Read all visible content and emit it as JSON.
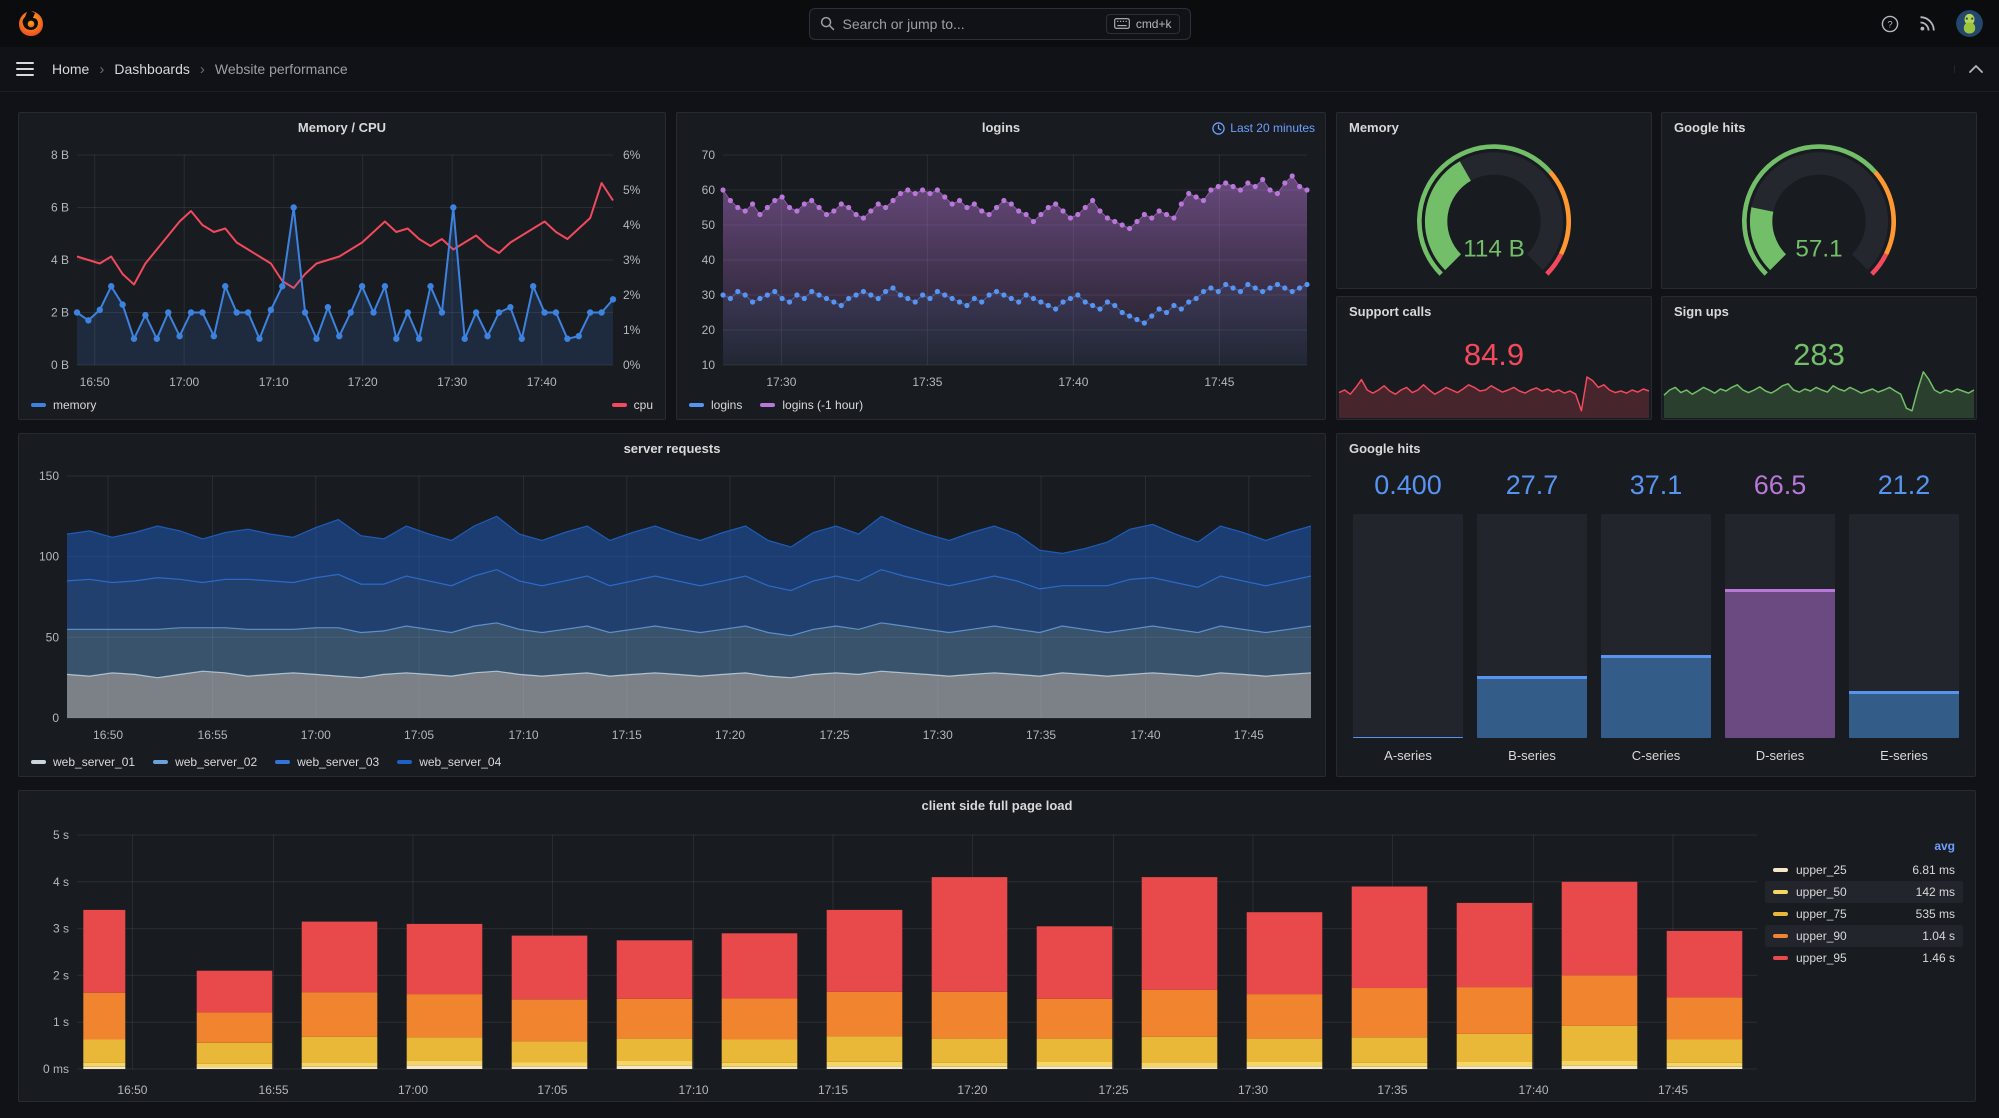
{
  "topnav": {
    "search_placeholder": "Search or jump to...",
    "shortcut_label": "cmd+k"
  },
  "breadcrumb": {
    "home": "Home",
    "section": "Dashboards",
    "current": "Website performance"
  },
  "colors": {
    "green": "#73BF69",
    "red": "#F2495C",
    "orange": "#FF9830",
    "blue": "#5794F2",
    "purple": "#B877D9",
    "link_blue": "#6E9FFF"
  },
  "chart_data": [
    {
      "panel": "memory-cpu",
      "type": "line",
      "title": "Memory / CPU",
      "x_ticks": [
        "16:50",
        "17:00",
        "17:10",
        "17:20",
        "17:30",
        "17:40"
      ],
      "x_tick_pos": [
        0.033,
        0.2,
        0.367,
        0.533,
        0.7,
        0.867
      ],
      "y_left": {
        "ticks": [
          "0 B",
          "2 B",
          "4 B",
          "6 B",
          "8 B"
        ],
        "min": 0,
        "max": 8
      },
      "y_right": {
        "ticks": [
          "0%",
          "1%",
          "2%",
          "3%",
          "4%",
          "5%",
          "6%"
        ],
        "min": 0,
        "max": 6
      },
      "series": [
        {
          "name": "memory",
          "color": "#3D82DE",
          "axis": "left",
          "points": true,
          "point_r": 3.2,
          "width": 2,
          "fill": "rgba(61,130,222,0.16)",
          "values": [
            2,
            1.7,
            2.1,
            3,
            2.3,
            1,
            1.9,
            1,
            2,
            1.1,
            2,
            2,
            1.1,
            3,
            2,
            2,
            1,
            2.1,
            3,
            6,
            2,
            1,
            2.2,
            1.1,
            2,
            3,
            2,
            3,
            1,
            2,
            1,
            3,
            2,
            6,
            1,
            2,
            1.1,
            2,
            2.2,
            1,
            3,
            2,
            2,
            1,
            1.1,
            2,
            2,
            2.5
          ]
        },
        {
          "name": "cpu",
          "color": "#F2495C",
          "axis": "right",
          "width": 2,
          "values": [
            3.1,
            3.0,
            2.9,
            3.1,
            2.6,
            2.3,
            2.9,
            3.3,
            3.7,
            4.1,
            4.4,
            4.0,
            3.8,
            3.9,
            3.5,
            3.3,
            3.1,
            2.9,
            2.4,
            2.2,
            2.6,
            2.9,
            3.0,
            3.1,
            3.3,
            3.5,
            3.8,
            4.1,
            3.8,
            3.9,
            3.6,
            3.4,
            3.6,
            3.3,
            3.5,
            3.7,
            3.4,
            3.2,
            3.5,
            3.7,
            3.9,
            4.1,
            3.8,
            3.6,
            3.9,
            4.2,
            5.2,
            4.7
          ]
        }
      ]
    },
    {
      "panel": "logins",
      "type": "line",
      "title": "logins",
      "time_range_label": "Last 20 minutes",
      "x_ticks": [
        "17:30",
        "17:35",
        "17:40",
        "17:45"
      ],
      "x_tick_pos": [
        0.1,
        0.35,
        0.6,
        0.85
      ],
      "y_left": {
        "ticks": [
          "10",
          "20",
          "30",
          "40",
          "50",
          "60",
          "70"
        ],
        "min": 10,
        "max": 70
      },
      "series": [
        {
          "name": "logins",
          "color": "#5794F2",
          "points": true,
          "point_r": 2.6,
          "width": 1,
          "line_opacity": 0.5,
          "fill": "rgba(87,148,242,0.08)",
          "values": [
            30,
            29,
            31,
            30,
            28,
            29,
            30,
            31,
            29,
            28,
            30,
            29,
            31,
            30,
            29,
            28,
            27,
            29,
            30,
            31,
            30,
            29,
            31,
            32,
            30,
            29,
            28,
            30,
            29,
            31,
            30,
            29,
            28,
            27,
            29,
            28,
            30,
            31,
            30,
            29,
            28,
            30,
            29,
            28,
            27,
            26,
            28,
            29,
            30,
            28,
            27,
            26,
            28,
            27,
            25,
            24,
            23,
            22,
            24,
            26,
            25,
            27,
            26,
            28,
            29,
            31,
            32,
            31,
            33,
            32,
            31,
            33,
            32,
            31,
            32,
            33,
            32,
            31,
            32,
            33
          ]
        },
        {
          "name": "logins (-1 hour)",
          "color": "#B877D9",
          "points": true,
          "point_r": 2.6,
          "width": 1,
          "line_opacity": 0.6,
          "fill": "gradient",
          "values": [
            60,
            57,
            55,
            54,
            56,
            53,
            55,
            57,
            58,
            55,
            54,
            56,
            57,
            55,
            53,
            54,
            56,
            55,
            53,
            52,
            54,
            56,
            55,
            57,
            59,
            60,
            59,
            60,
            59,
            60,
            58,
            56,
            57,
            55,
            56,
            54,
            53,
            55,
            57,
            56,
            54,
            53,
            51,
            53,
            55,
            56,
            54,
            52,
            53,
            55,
            57,
            54,
            52,
            51,
            50,
            49,
            51,
            53,
            52,
            54,
            53,
            52,
            56,
            59,
            58,
            57,
            60,
            61,
            62,
            61,
            60,
            62,
            61,
            63,
            60,
            59,
            62,
            64,
            61,
            60
          ]
        }
      ]
    },
    {
      "panel": "memory-gauge",
      "type": "gauge",
      "title": "Memory",
      "value": "114 B",
      "fill_frac": 0.39,
      "value_color": "#73BF69",
      "thresholds": [
        {
          "to": 0.68,
          "color": "#73BF69"
        },
        {
          "to": 0.93,
          "color": "#FF9830"
        },
        {
          "to": 1,
          "color": "#F2495C"
        }
      ]
    },
    {
      "panel": "google-gauge",
      "type": "gauge",
      "title": "Google hits",
      "value": "57.1",
      "fill_frac": 0.21,
      "value_color": "#73BF69",
      "thresholds": [
        {
          "to": 0.68,
          "color": "#73BF69"
        },
        {
          "to": 0.93,
          "color": "#FF9830"
        },
        {
          "to": 1,
          "color": "#F2495C"
        }
      ]
    },
    {
      "panel": "support-calls",
      "type": "sparkline",
      "title": "Support calls",
      "value": "84.9",
      "color": "#F2495C",
      "values": [
        0.45,
        0.5,
        0.42,
        0.55,
        0.7,
        0.5,
        0.44,
        0.5,
        0.58,
        0.48,
        0.42,
        0.5,
        0.55,
        0.45,
        0.5,
        0.6,
        0.5,
        0.42,
        0.48,
        0.55,
        0.5,
        0.45,
        0.52,
        0.6,
        0.55,
        0.48,
        0.5,
        0.58,
        0.52,
        0.46,
        0.5,
        0.55,
        0.48,
        0.44,
        0.5,
        0.54,
        0.48,
        0.52,
        0.46,
        0.5,
        0.44,
        0.48,
        0.42,
        0.1,
        0.75,
        0.68,
        0.55,
        0.6,
        0.5,
        0.45,
        0.48,
        0.44,
        0.5,
        0.46,
        0.52,
        0.48
      ]
    },
    {
      "panel": "sign-ups",
      "type": "sparkline",
      "title": "Sign ups",
      "value": "283",
      "color": "#73BF69",
      "values": [
        0.4,
        0.5,
        0.55,
        0.45,
        0.5,
        0.42,
        0.48,
        0.55,
        0.5,
        0.44,
        0.52,
        0.48,
        0.55,
        0.6,
        0.5,
        0.45,
        0.5,
        0.56,
        0.48,
        0.44,
        0.5,
        0.58,
        0.62,
        0.5,
        0.46,
        0.52,
        0.48,
        0.55,
        0.5,
        0.46,
        0.58,
        0.52,
        0.48,
        0.55,
        0.5,
        0.44,
        0.48,
        0.52,
        0.46,
        0.5,
        0.55,
        0.48,
        0.42,
        0.15,
        0.1,
        0.5,
        0.85,
        0.7,
        0.5,
        0.44,
        0.5,
        0.46,
        0.52,
        0.48,
        0.44,
        0.5
      ]
    },
    {
      "panel": "server-requests",
      "type": "area",
      "stacked": true,
      "title": "server requests",
      "x_ticks": [
        "16:50",
        "16:55",
        "17:00",
        "17:05",
        "17:10",
        "17:15",
        "17:20",
        "17:25",
        "17:30",
        "17:35",
        "17:40",
        "17:45"
      ],
      "x_tick_pos": [
        0.033,
        0.117,
        0.2,
        0.283,
        0.367,
        0.45,
        0.533,
        0.617,
        0.7,
        0.783,
        0.867,
        0.95
      ],
      "y_left": {
        "ticks": [
          "0",
          "50",
          "100",
          "150"
        ],
        "min": 0,
        "max": 150
      },
      "series": [
        {
          "name": "web_server_01",
          "color": "#CDD5DC",
          "fill": "rgba(205,213,220,0.55)",
          "values": [
            27,
            26,
            28,
            27,
            25,
            27,
            29,
            28,
            26,
            27,
            28,
            27,
            26,
            25,
            27,
            28,
            27,
            26,
            28,
            29,
            27,
            26,
            27,
            28,
            26,
            27,
            28,
            27,
            26,
            27,
            28,
            26,
            25,
            27,
            28,
            27,
            29,
            28,
            27,
            26,
            27,
            28,
            27,
            26,
            28,
            27,
            26,
            27,
            28,
            27,
            26,
            28,
            27,
            26,
            27,
            28
          ]
        },
        {
          "name": "web_server_02",
          "color": "#6CA1D9",
          "fill": "rgba(108,161,217,0.42)",
          "values": [
            28,
            29,
            27,
            28,
            30,
            29,
            27,
            28,
            29,
            28,
            27,
            29,
            30,
            28,
            27,
            29,
            28,
            27,
            29,
            30,
            28,
            27,
            28,
            29,
            27,
            28,
            29,
            28,
            27,
            28,
            29,
            27,
            26,
            28,
            29,
            28,
            30,
            29,
            28,
            27,
            28,
            29,
            28,
            27,
            29,
            28,
            27,
            28,
            29,
            28,
            27,
            29,
            28,
            27,
            28,
            29
          ]
        },
        {
          "name": "web_server_03",
          "color": "#3274D9",
          "fill": "rgba(50,116,217,0.42)",
          "values": [
            30,
            31,
            29,
            30,
            32,
            30,
            28,
            30,
            31,
            30,
            29,
            31,
            33,
            30,
            29,
            31,
            30,
            29,
            31,
            33,
            30,
            29,
            30,
            31,
            29,
            30,
            31,
            30,
            29,
            30,
            31,
            29,
            28,
            30,
            31,
            30,
            33,
            31,
            30,
            29,
            30,
            31,
            30,
            27,
            25,
            27,
            29,
            31,
            30,
            29,
            28,
            31,
            30,
            29,
            30,
            31
          ]
        },
        {
          "name": "web_server_04",
          "color": "#1F60C4",
          "fill": "rgba(31,96,196,0.50)",
          "values": [
            29,
            30,
            28,
            30,
            32,
            30,
            27,
            29,
            31,
            29,
            28,
            31,
            34,
            30,
            28,
            31,
            29,
            28,
            31,
            33,
            29,
            28,
            30,
            31,
            28,
            30,
            31,
            29,
            28,
            30,
            31,
            28,
            27,
            30,
            31,
            29,
            33,
            31,
            29,
            28,
            30,
            31,
            29,
            24,
            20,
            23,
            27,
            31,
            33,
            30,
            28,
            31,
            30,
            28,
            30,
            31
          ]
        }
      ]
    },
    {
      "panel": "google-hits-bars",
      "type": "bar",
      "title": "Google hits",
      "max": 100,
      "bars": [
        {
          "label": "A-series",
          "value": "0.400",
          "pct": 0.4,
          "body": "#335C88",
          "edge": "#5794F2",
          "value_color": "#5794F2"
        },
        {
          "label": "B-series",
          "value": "27.7",
          "pct": 27.7,
          "body": "#335C88",
          "edge": "#5794F2",
          "value_color": "#5794F2"
        },
        {
          "label": "C-series",
          "value": "37.1",
          "pct": 37.1,
          "body": "#335C88",
          "edge": "#5794F2",
          "value_color": "#5794F2"
        },
        {
          "label": "D-series",
          "value": "66.5",
          "pct": 66.5,
          "body": "#6B4A82",
          "edge": "#B877D9",
          "value_color": "#B877D9"
        },
        {
          "label": "E-series",
          "value": "21.2",
          "pct": 21.2,
          "body": "#335C88",
          "edge": "#5794F2",
          "value_color": "#5794F2"
        }
      ]
    },
    {
      "panel": "client-page-load",
      "type": "bar-stacked",
      "title": "client side full page load",
      "x_ticks": [
        "16:50",
        "16:55",
        "17:00",
        "17:05",
        "17:10",
        "17:15",
        "17:20",
        "17:25",
        "17:30",
        "17:35",
        "17:40",
        "17:45"
      ],
      "x_tick_pos": [
        0.033,
        0.117,
        0.2,
        0.283,
        0.367,
        0.45,
        0.533,
        0.617,
        0.7,
        0.783,
        0.867,
        0.95
      ],
      "y_left": {
        "ticks": [
          "0 ms",
          "1 s",
          "2 s",
          "3 s",
          "4 s",
          "5 s"
        ],
        "min": 0,
        "max": 5
      },
      "segments": [
        "upper_25",
        "upper_50",
        "upper_75",
        "upper_90",
        "upper_95"
      ],
      "segment_colors": [
        "#F8E6C8",
        "#F5D664",
        "#EAB839",
        "#F0842F",
        "#E8494A"
      ],
      "bars": [
        [
          0.05,
          0.08,
          0.5,
          1.0,
          1.77
        ],
        [
          0.04,
          0.07,
          0.45,
          0.65,
          0.89
        ],
        [
          0.05,
          0.09,
          0.55,
          0.95,
          1.51
        ],
        [
          0.08,
          0.1,
          0.5,
          0.92,
          1.5
        ],
        [
          0.06,
          0.08,
          0.45,
          0.9,
          1.36
        ],
        [
          0.07,
          0.1,
          0.48,
          0.85,
          1.25
        ],
        [
          0.05,
          0.08,
          0.5,
          0.88,
          1.39
        ],
        [
          0.06,
          0.09,
          0.55,
          0.95,
          1.75
        ],
        [
          0.05,
          0.08,
          0.52,
          1.0,
          2.45
        ],
        [
          0.06,
          0.09,
          0.5,
          0.85,
          1.55
        ],
        [
          0.04,
          0.1,
          0.55,
          1.0,
          2.41
        ],
        [
          0.06,
          0.09,
          0.5,
          0.95,
          1.75
        ],
        [
          0.05,
          0.08,
          0.55,
          1.05,
          2.17
        ],
        [
          0.06,
          0.09,
          0.6,
          1.0,
          1.8
        ],
        [
          0.07,
          0.1,
          0.75,
          1.08,
          2.0
        ],
        [
          0.05,
          0.08,
          0.5,
          0.9,
          1.42
        ]
      ],
      "legend": {
        "header": "avg",
        "rows": [
          {
            "name": "upper_25",
            "value": "6.81 ms"
          },
          {
            "name": "upper_50",
            "value": "142 ms"
          },
          {
            "name": "upper_75",
            "value": "535 ms"
          },
          {
            "name": "upper_90",
            "value": "1.04 s"
          },
          {
            "name": "upper_95",
            "value": "1.46 s"
          }
        ]
      }
    }
  ]
}
